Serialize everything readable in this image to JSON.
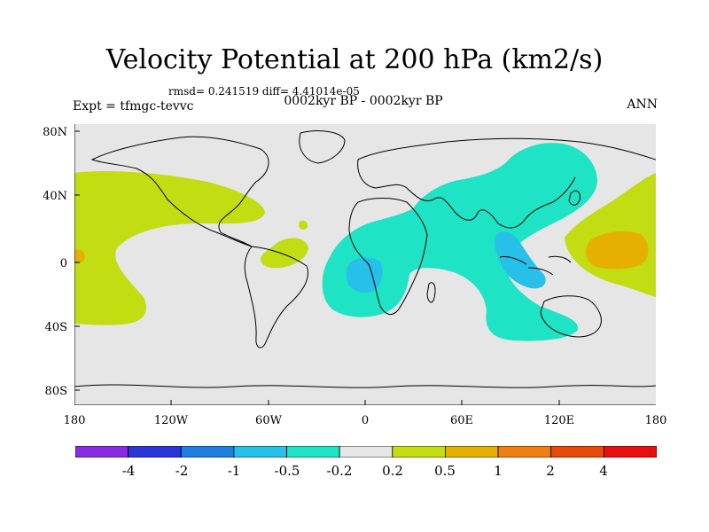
{
  "title": "Velocity Potential at 200 hPa (km2/s)",
  "stats": "rmsd= 0.241519 diff= 4.41014e-05",
  "experiment": "Expt = tfmgc-tevvc",
  "period": "0002kyr BP - 0002kyr BP",
  "season": "ANN",
  "lat_labels": [
    "80N",
    "40N",
    "0",
    "40S",
    "80S"
  ],
  "lon_labels": [
    "180",
    "120W",
    "60W",
    "0",
    "60E",
    "120E",
    "180"
  ],
  "colorbar": {
    "labels": [
      "-4",
      "-2",
      "-1",
      "-0.5",
      "-0.2",
      "0.2",
      "0.5",
      "1",
      "2",
      "4"
    ],
    "colors": [
      "#8a2be2",
      "#2b35d8",
      "#1f7fe0",
      "#27c0e8",
      "#1fe3c5",
      "#e6e6e6",
      "#c2dd12",
      "#e5b000",
      "#ee7f10",
      "#e84a0a",
      "#e80f0f"
    ]
  },
  "field_colors": {
    "background": "#e6e6e6",
    "positive_low": "#c2dd12",
    "positive_mid": "#e5b000",
    "negative_low": "#1fe3c5",
    "negative_mid": "#27c0e8"
  }
}
